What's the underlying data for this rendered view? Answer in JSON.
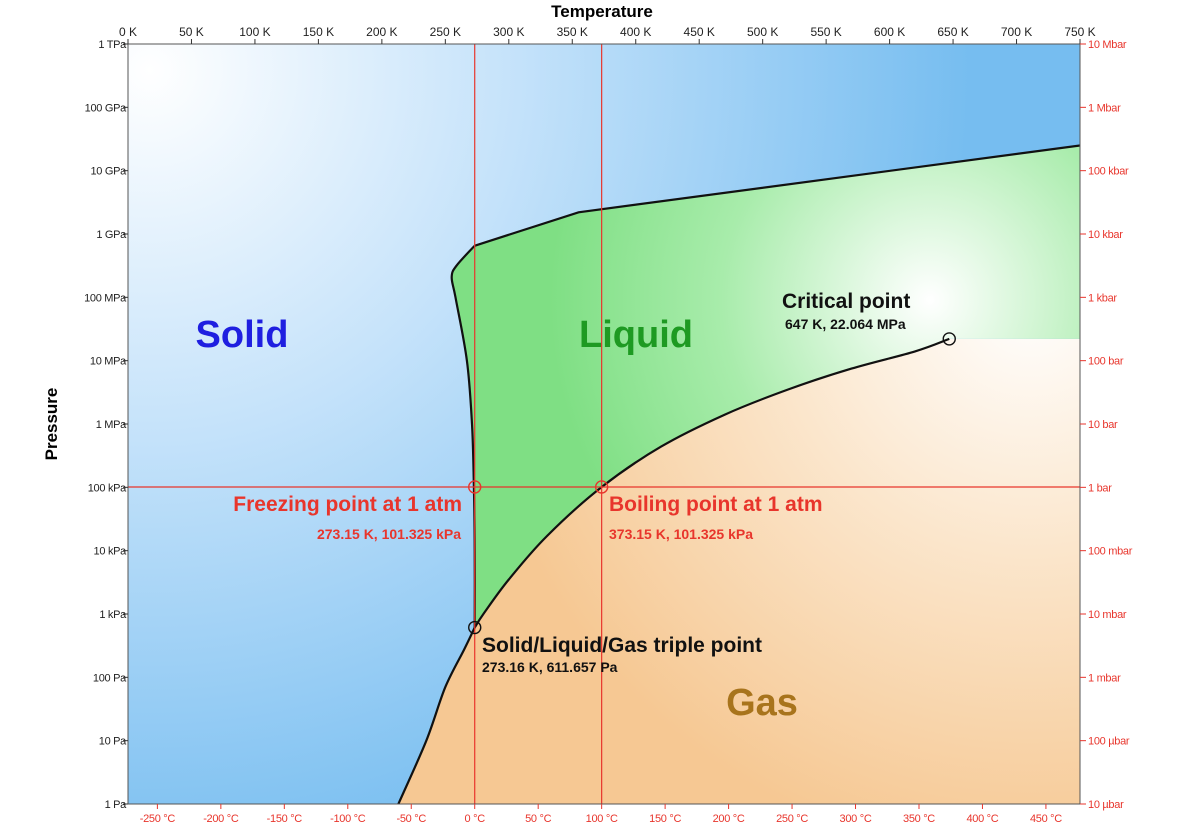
{
  "chart_data": {
    "type": "line",
    "title": "",
    "xlabel": "Temperature",
    "ylabel": "Pressure",
    "x_scale": "linear",
    "y_scale": "log",
    "xlim": [
      0,
      750
    ],
    "ylim": [
      1,
      1000000000000
    ],
    "grid": false,
    "x_ticks_kelvin": [
      "0 K",
      "50 K",
      "100 K",
      "150 K",
      "200 K",
      "250 K",
      "300 K",
      "350 K",
      "400 K",
      "450 K",
      "500 K",
      "550 K",
      "600 K",
      "650 K",
      "700 K",
      "750 K"
    ],
    "x_ticks_celsius": [
      "-250 °C",
      "-200 °C",
      "-150 °C",
      "-100 °C",
      "-50 °C",
      "0 °C",
      "50 °C",
      "100 °C",
      "150 °C",
      "200 °C",
      "250 °C",
      "300 °C",
      "350 °C",
      "400 °C",
      "450 °C"
    ],
    "y_ticks_pascal": [
      "1 Pa",
      "10 Pa",
      "100 Pa",
      "1 kPa",
      "10 kPa",
      "100 kPa",
      "1 MPa",
      "10 MPa",
      "100 MPa",
      "1 GPa",
      "10 GPa",
      "100 GPa",
      "1 TPa"
    ],
    "y_ticks_bar": [
      "10 µbar",
      "100 µbar",
      "1 mbar",
      "10 mbar",
      "100 mbar",
      "1 bar",
      "10 bar",
      "100 bar",
      "1 kbar",
      "10 kbar",
      "100 kbar",
      "1 Mbar",
      "10 Mbar"
    ],
    "regions": [
      {
        "label": "Solid",
        "color": "#1f1fe0"
      },
      {
        "label": "Liquid",
        "color": "#1e9a22"
      },
      {
        "label": "Gas",
        "color": "#a8741c"
      }
    ],
    "series": [
      {
        "x": [
          213,
          235,
          250,
          265,
          273.16
        ],
        "y": [
          1,
          10,
          70,
          280,
          611.657
        ]
      },
      {
        "x": [
          273.16,
          280,
          300,
          330,
          373.15,
          420,
          470,
          520,
          570,
          620,
          647
        ],
        "y": [
          611.657,
          1000,
          3500,
          17000,
          101325,
          440000,
          1400000,
          3500000,
          7500000,
          14000000,
          22064000
        ]
      },
      {
        "x": [
          273.16,
          273.16,
          272.5,
          271,
          267,
          258,
          255,
          259,
          273,
          355,
          750
        ],
        "y": [
          611.657,
          10000,
          100000,
          1000000,
          10000000,
          100000000,
          210000000,
          320000000,
          650000000,
          2200000000,
          25000000000
        ]
      }
    ],
    "reference_lines": {
      "x_kelvin": [
        273.15,
        373.15
      ],
      "y_pa": [
        101325
      ],
      "color": "#e8352c"
    },
    "annotations": [
      {
        "title": "Critical point",
        "detail": "647 K, 22.064 MPa",
        "x": 647,
        "y": 22064000,
        "color": "#111111"
      },
      {
        "title": "Freezing point at 1 atm",
        "detail": "273.15 K, 101.325 kPa",
        "x": 273.15,
        "y": 101325,
        "color": "#e8352c"
      },
      {
        "title": "Boiling point at 1 atm",
        "detail": "373.15 K, 101.325 kPa",
        "x": 373.15,
        "y": 101325,
        "color": "#e8352c"
      },
      {
        "title": "Solid/Liquid/Gas triple point",
        "detail": "273.16 K, 611.657 Pa",
        "x": 273.16,
        "y": 611.657,
        "color": "#111111"
      }
    ]
  }
}
